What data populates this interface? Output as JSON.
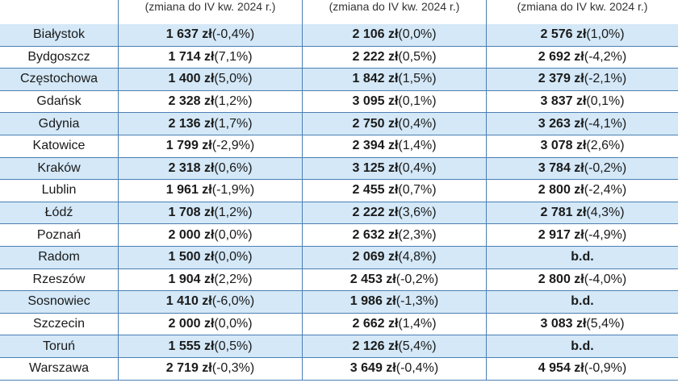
{
  "header": {
    "col1_sub": "(zmiana do IV kw. 2024 r.)",
    "col2_sub": "(zmiana do IV kw. 2024 r.)",
    "col3_sub": "(zmiana do IV kw. 2024 r.)"
  },
  "rows": [
    {
      "city": "Białystok",
      "v1": "1 637 zł",
      "c1": " (-0,4%)",
      "v2": "2 106 zł",
      "c2": " (0,0%)",
      "v3": "2 576 zł",
      "c3": " (1,0%)"
    },
    {
      "city": "Bydgoszcz",
      "v1": "1 714 zł",
      "c1": " (7,1%)",
      "v2": "2 222 zł",
      "c2": " (0,5%)",
      "v3": "2 692 zł",
      "c3": " (-4,2%)"
    },
    {
      "city": "Częstochowa",
      "v1": "1 400 zł",
      "c1": " (5,0%)",
      "v2": "1 842 zł",
      "c2": " (1,5%)",
      "v3": "2 379 zł",
      "c3": " (-2,1%)"
    },
    {
      "city": "Gdańsk",
      "v1": "2 328 zł",
      "c1": " (1,2%)",
      "v2": "3 095 zł",
      "c2": " (0,1%)",
      "v3": "3 837 zł",
      "c3": " (0,1%)"
    },
    {
      "city": "Gdynia",
      "v1": "2 136 zł",
      "c1": " (1,7%)",
      "v2": "2 750 zł",
      "c2": " (0,4%)",
      "v3": "3 263 zł",
      "c3": " (-4,1%)"
    },
    {
      "city": "Katowice",
      "v1": "1 799 zł",
      "c1": " (-2,9%)",
      "v2": "2 394 zł",
      "c2": " (1,4%)",
      "v3": "3 078 zł",
      "c3": " (2,6%)"
    },
    {
      "city": "Kraków",
      "v1": "2 318 zł",
      "c1": " (0,6%)",
      "v2": "3 125 zł",
      "c2": " (0,4%)",
      "v3": "3 784 zł",
      "c3": " (-0,2%)"
    },
    {
      "city": "Lublin",
      "v1": "1 961 zł",
      "c1": " (-1,9%)",
      "v2": "2 455 zł",
      "c2": " (0,7%)",
      "v3": "2 800 zł",
      "c3": " (-2,4%)"
    },
    {
      "city": "Łódź",
      "v1": "1 708 zł",
      "c1": " (1,2%)",
      "v2": "2 222 zł",
      "c2": " (3,6%)",
      "v3": "2 781 zł",
      "c3": " (4,3%)"
    },
    {
      "city": "Poznań",
      "v1": "2 000 zł",
      "c1": " (0,0%)",
      "v2": "2 632 zł",
      "c2": " (2,3%)",
      "v3": "2 917 zł",
      "c3": " (-4,9%)"
    },
    {
      "city": "Radom",
      "v1": "1 500 zł",
      "c1": " (0,0%)",
      "v2": "2 069 zł",
      "c2": " (4,8%)",
      "v3": "b.d.",
      "c3": ""
    },
    {
      "city": "Rzeszów",
      "v1": "1 904 zł",
      "c1": " (2,2%)",
      "v2": "2 453 zł",
      "c2": " (-0,2%)",
      "v3": "2 800 zł",
      "c3": " (-4,0%)"
    },
    {
      "city": "Sosnowiec",
      "v1": "1 410 zł",
      "c1": " (-6,0%)",
      "v2": "1 986 zł",
      "c2": " (-1,3%)",
      "v3": "b.d.",
      "c3": ""
    },
    {
      "city": "Szczecin",
      "v1": "2 000 zł",
      "c1": " (0,0%)",
      "v2": "2 662 zł",
      "c2": " (1,4%)",
      "v3": "3 083 zł",
      "c3": " (5,4%)"
    },
    {
      "city": "Toruń",
      "v1": "1 555 zł",
      "c1": " (0,5%)",
      "v2": "2 126 zł",
      "c2": " (5,4%)",
      "v3": "b.d.",
      "c3": ""
    },
    {
      "city": "Warszawa",
      "v1": "2 719 zł",
      "c1": " (-0,3%)",
      "v2": "3 649 zł",
      "c2": " (-0,4%)",
      "v3": "4 954 zł",
      "c3": " (-0,9%)"
    }
  ],
  "colors": {
    "row_alt": "#d4e8f7",
    "border": "#4a7fb4"
  }
}
